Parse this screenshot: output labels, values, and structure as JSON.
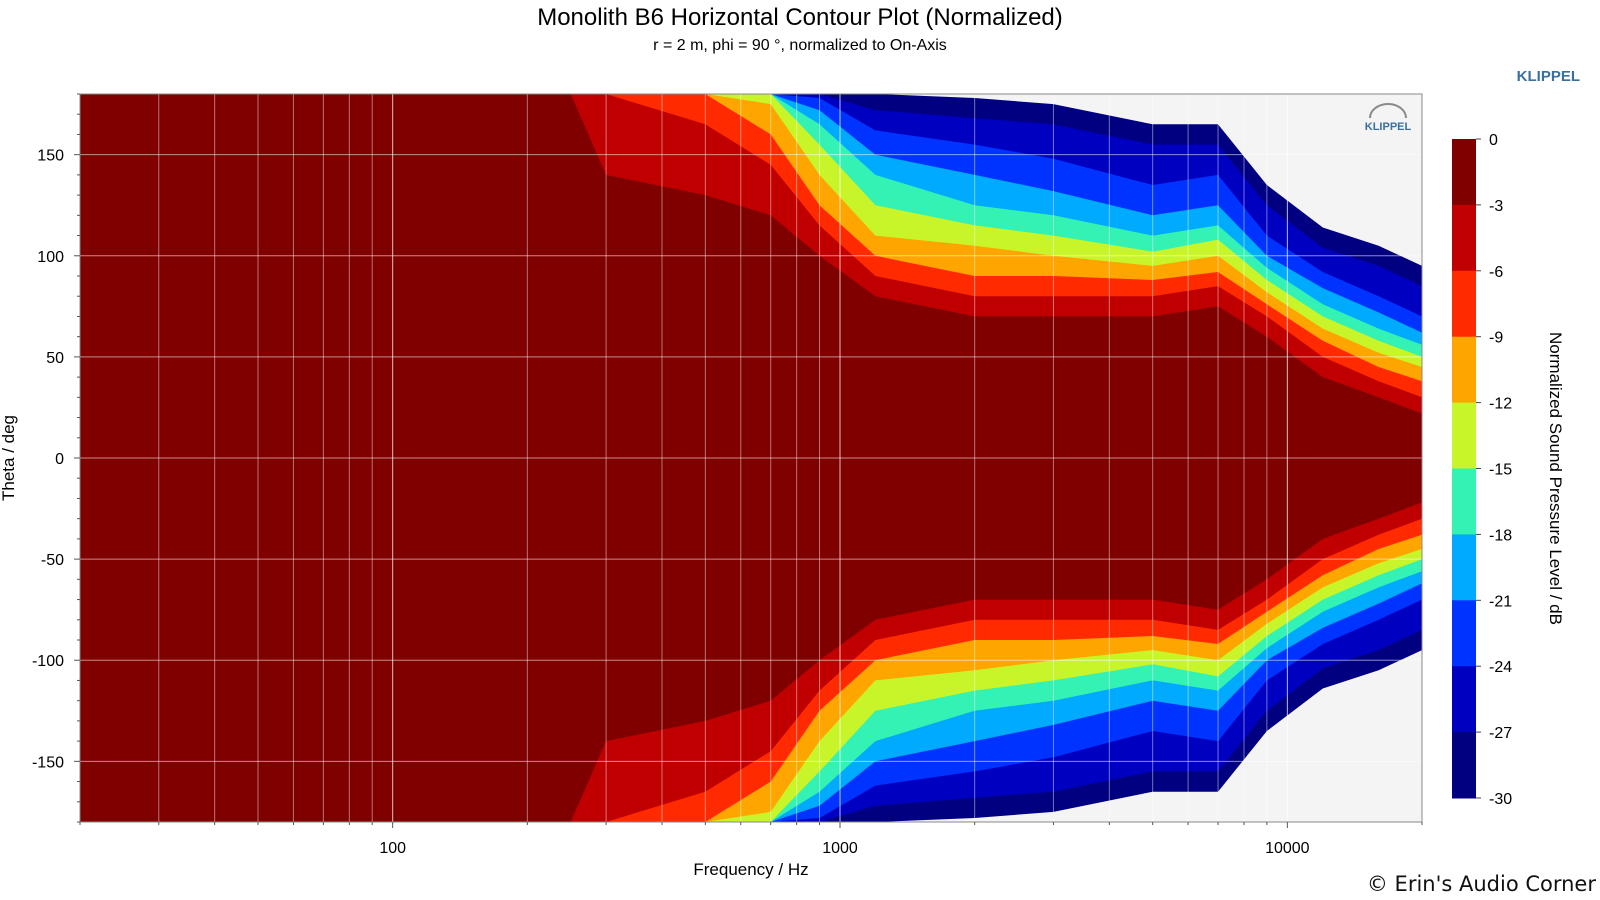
{
  "title": "Monolith B6 Horizontal Contour Plot (Normalized)",
  "subtitle": "r = 2 m, phi = 90 °, normalized to On-Axis",
  "brand": "KLIPPEL",
  "plot_logo": "KLIPPEL",
  "copyright": "© Erin's Audio Corner",
  "colorbar": {
    "label": "Normalized Sound Pressure Level / dB",
    "levels": [
      0,
      -3,
      -6,
      -9,
      -12,
      -15,
      -18,
      -21,
      -24,
      -27,
      -30
    ],
    "tick_labels": [
      "0",
      "-3",
      "-6",
      "-9",
      "-12",
      "-15",
      "-18",
      "-21",
      "-24",
      "-27",
      "-30"
    ],
    "colors": [
      "#800000",
      "#c00000",
      "#ff2a00",
      "#ffa500",
      "#c8f52a",
      "#33f2b3",
      "#00aaff",
      "#0033ff",
      "#0000c0",
      "#000080"
    ]
  },
  "chart_data": {
    "type": "heatmap",
    "title": "Monolith B6 Horizontal Contour Plot (Normalized)",
    "xlabel": "Frequency / Hz",
    "ylabel": "Theta / deg",
    "xscale": "log",
    "xlim": [
      20,
      20000
    ],
    "ylim": [
      -180,
      180
    ],
    "x_tick_labels": [
      "100",
      "1000",
      "10000"
    ],
    "x_ticks": [
      100,
      1000,
      10000
    ],
    "y_tick_labels": [
      "150",
      "100",
      "50",
      "0",
      "-50",
      "-100",
      "-150"
    ],
    "y_ticks": [
      150,
      100,
      50,
      0,
      -50,
      -100,
      -150
    ],
    "grid": true,
    "colorbar_position": "right",
    "beamwidth_contours": {
      "frequency_hz": [
        20,
        250,
        300,
        500,
        700,
        900,
        1200,
        2000,
        3000,
        5000,
        7000,
        9000,
        12000,
        16000,
        20000
      ],
      "theta_deg": {
        "-3": [
          180,
          180,
          140,
          130,
          120,
          100,
          80,
          70,
          70,
          70,
          75,
          60,
          40,
          30,
          22
        ],
        "-6": [
          180,
          180,
          180,
          165,
          145,
          115,
          90,
          80,
          80,
          80,
          85,
          70,
          50,
          38,
          30
        ],
        "-9": [
          180,
          180,
          180,
          180,
          160,
          125,
          100,
          90,
          90,
          88,
          92,
          76,
          58,
          45,
          38
        ],
        "-12": [
          180,
          180,
          180,
          180,
          175,
          140,
          110,
          105,
          100,
          95,
          100,
          82,
          64,
          52,
          45
        ],
        "-15": [
          180,
          180,
          180,
          180,
          180,
          155,
          125,
          115,
          110,
          102,
          108,
          88,
          70,
          58,
          50
        ],
        "-18": [
          180,
          180,
          180,
          180,
          180,
          165,
          140,
          125,
          120,
          110,
          115,
          94,
          76,
          64,
          56
        ],
        "-21": [
          180,
          180,
          180,
          180,
          180,
          172,
          150,
          140,
          132,
          120,
          125,
          100,
          84,
          72,
          62
        ],
        "-24": [
          180,
          180,
          180,
          180,
          180,
          178,
          162,
          155,
          148,
          135,
          140,
          110,
          92,
          80,
          70
        ],
        "-27": [
          180,
          180,
          180,
          180,
          180,
          180,
          172,
          168,
          165,
          155,
          155,
          125,
          104,
          95,
          85
        ]
      }
    }
  }
}
